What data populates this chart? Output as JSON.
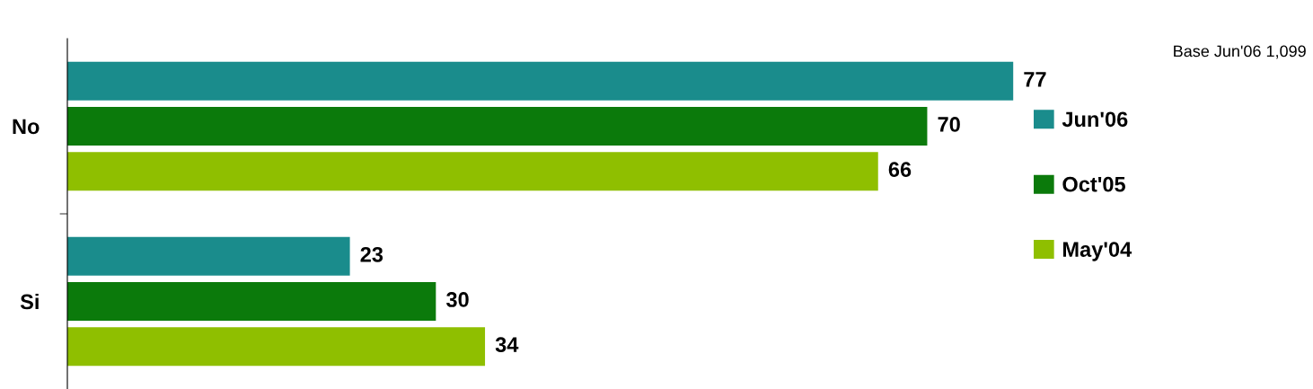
{
  "chart_data": {
    "type": "bar",
    "orientation": "horizontal",
    "categories": [
      "No",
      "Si"
    ],
    "series": [
      {
        "name": "Jun'06",
        "color": "#1a8c8c",
        "values": [
          77,
          23
        ]
      },
      {
        "name": "Oct'05",
        "color": "#0b7a0b",
        "values": [
          70,
          30
        ]
      },
      {
        "name": "May'04",
        "color": "#8fbf00",
        "values": [
          66,
          34
        ]
      }
    ],
    "data_labels": true,
    "legend": "right",
    "grid": false,
    "annotations": [
      "Base Jun'06 1,099"
    ]
  }
}
